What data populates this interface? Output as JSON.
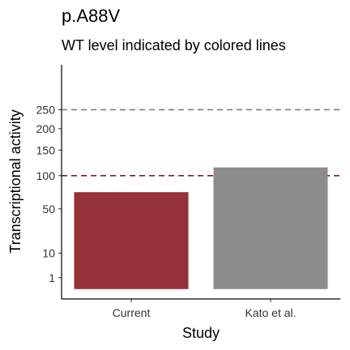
{
  "chart_data": {
    "type": "bar",
    "title": "p.A88V",
    "subtitle": "WT level indicated by colored lines",
    "xlabel": "Study",
    "ylabel": "Transcriptional activity",
    "categories": [
      "Current",
      "Kato et al."
    ],
    "values": [
      73,
      115
    ],
    "bar_colors": [
      "#943237",
      "#8c8c8c"
    ],
    "y_scale": "sqrt",
    "ylim": [
      0,
      400
    ],
    "yticks": [
      1,
      10,
      50,
      100,
      150,
      200,
      250
    ],
    "reference_lines": [
      {
        "value": 250,
        "color": "#7f7f7f",
        "style": "dashed"
      },
      {
        "value": 100,
        "color": "#7a1f25",
        "style": "dashed"
      }
    ],
    "grid": false,
    "legend": "none"
  }
}
